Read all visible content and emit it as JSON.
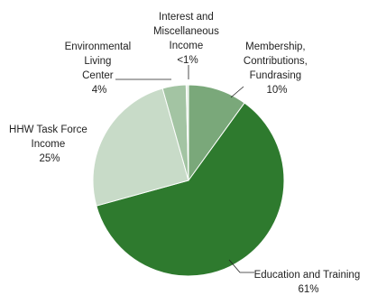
{
  "chart_data": {
    "type": "pie",
    "title": "",
    "slices": [
      {
        "name": "Membership, Contributions, Fundrasing",
        "label_lines": [
          "Membership,",
          "Contributions,",
          "Fundrasing",
          "10%"
        ],
        "value": 10,
        "color": "#7aa87a"
      },
      {
        "name": "Education and Training",
        "label_lines": [
          "Education and Training",
          "61%"
        ],
        "value": 61,
        "color": "#2e7a2e"
      },
      {
        "name": "HHW Task Force Income",
        "label_lines": [
          "HHW Task Force",
          "Income",
          "25%"
        ],
        "value": 25,
        "color": "#c8dbc8"
      },
      {
        "name": "Environmental Living Center",
        "label_lines": [
          "Environmental",
          "Living",
          "Center",
          "4%"
        ],
        "value": 4,
        "color": "#a3c4a3"
      },
      {
        "name": "Interest and Miscellaneous Income",
        "label_lines": [
          "Interest and",
          "Miscellaneous",
          "Income",
          "<1%"
        ],
        "value": 0.4,
        "color": "#e6efe6"
      }
    ],
    "start_angle_deg": 0,
    "direction": "clockwise",
    "legend": "none"
  }
}
